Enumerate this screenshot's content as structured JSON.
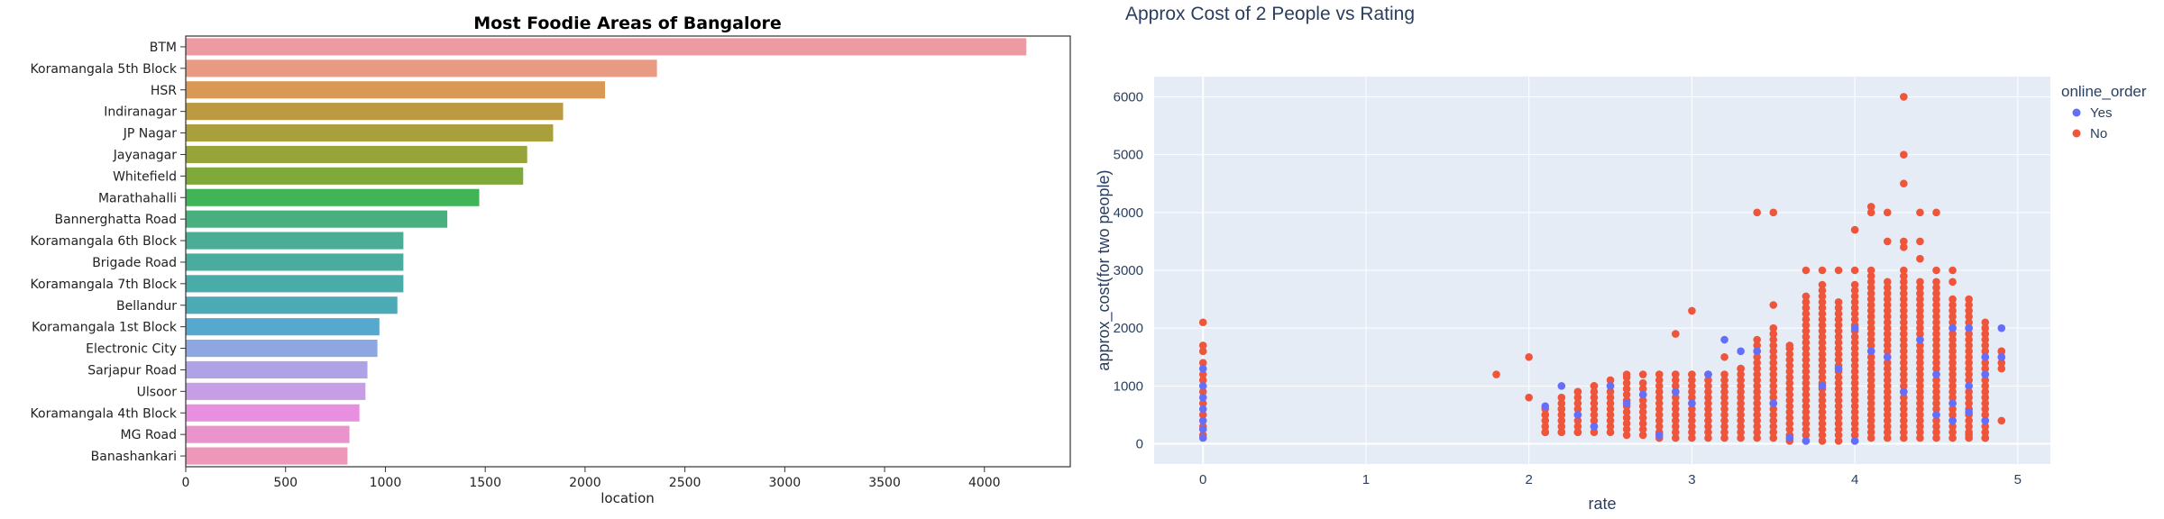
{
  "chart_data": [
    {
      "type": "bar",
      "orientation": "horizontal",
      "title": "Most Foodie Areas of Bangalore",
      "xlabel": "location",
      "ylabel": "",
      "xlim": [
        0,
        4430
      ],
      "xticks": [
        0,
        500,
        1000,
        1500,
        2000,
        2500,
        3000,
        3500,
        4000
      ],
      "categories": [
        "BTM",
        "Koramangala 5th Block",
        "HSR",
        "Indiranagar",
        "JP Nagar",
        "Jayanagar",
        "Whitefield",
        "Marathahalli",
        "Bannerghatta Road",
        "Koramangala 6th Block",
        "Brigade Road",
        "Koramangala 7th Block",
        "Bellandur",
        "Koramangala 1st Block",
        "Electronic City",
        "Sarjapur Road",
        "Ulsoor",
        "Koramangala 4th Block",
        "MG Road",
        "Banashankari"
      ],
      "values": [
        4210,
        2360,
        2100,
        1890,
        1840,
        1710,
        1690,
        1470,
        1310,
        1090,
        1090,
        1090,
        1060,
        970,
        960,
        910,
        900,
        870,
        820,
        810
      ],
      "colors": [
        "#ee9aa2",
        "#e89a82",
        "#d99854",
        "#bb9a42",
        "#a8a03c",
        "#96a43a",
        "#7fa938",
        "#41b458",
        "#48b07e",
        "#49ae93",
        "#4aac9f",
        "#4aaca9",
        "#4caab6",
        "#56a8cf",
        "#8ea6e2",
        "#b0a2e6",
        "#c79de6",
        "#e890e0",
        "#ea94cc",
        "#ed98b8"
      ],
      "grid": false,
      "legend": "none"
    },
    {
      "type": "scatter",
      "title": "Approx Cost of 2 People vs Rating",
      "xlabel": "rate",
      "ylabel": "approx_cost(for two people)",
      "xlim": [
        -0.3,
        5.2
      ],
      "ylim": [
        -350,
        6350
      ],
      "xticks": [
        0,
        1,
        2,
        3,
        4,
        5
      ],
      "yticks": [
        0,
        1000,
        2000,
        3000,
        4000,
        5000,
        6000
      ],
      "grid": true,
      "legend_position": "top-right",
      "legend_title": "online_order",
      "colors": {
        "Yes": "#636efa",
        "No": "#ef553b",
        "plot_bg": "#e5ecf6"
      },
      "series": [
        {
          "name": "Yes",
          "points": [
            [
              0,
              100
            ],
            [
              0,
              250
            ],
            [
              0,
              400
            ],
            [
              0,
              600
            ],
            [
              0,
              800
            ],
            [
              0,
              1000
            ],
            [
              0,
              1300
            ],
            [
              2.1,
              650
            ],
            [
              2.2,
              1000
            ],
            [
              2.3,
              500
            ],
            [
              2.4,
              300
            ],
            [
              2.5,
              1000
            ],
            [
              2.6,
              700
            ],
            [
              2.7,
              850
            ],
            [
              2.8,
              150
            ],
            [
              2.9,
              900
            ],
            [
              3.0,
              700
            ],
            [
              3.1,
              1200
            ],
            [
              3.2,
              1800
            ],
            [
              3.3,
              1600
            ],
            [
              3.4,
              1600
            ],
            [
              3.5,
              700
            ],
            [
              3.6,
              100
            ],
            [
              3.7,
              50
            ],
            [
              3.8,
              1000
            ],
            [
              3.9,
              1300
            ],
            [
              4.0,
              50
            ],
            [
              4.0,
              2000
            ],
            [
              4.1,
              1600
            ],
            [
              4.2,
              1500
            ],
            [
              4.3,
              900
            ],
            [
              4.4,
              1800
            ],
            [
              4.5,
              1200
            ],
            [
              4.5,
              500
            ],
            [
              4.6,
              700
            ],
            [
              4.6,
              2000
            ],
            [
              4.7,
              550
            ],
            [
              4.7,
              2000
            ],
            [
              4.8,
              1200
            ],
            [
              4.8,
              1500
            ],
            [
              4.8,
              400
            ],
            [
              4.9,
              2000
            ],
            [
              4.9,
              1500
            ],
            [
              4.6,
              400
            ],
            [
              4.7,
              1000
            ]
          ]
        },
        {
          "name": "No",
          "points": [
            [
              0,
              150
            ],
            [
              0,
              300
            ],
            [
              0,
              500
            ],
            [
              0,
              700
            ],
            [
              0,
              900
            ],
            [
              0,
              1100
            ],
            [
              0,
              1200
            ],
            [
              0,
              1400
            ],
            [
              0,
              1600
            ],
            [
              0,
              1700
            ],
            [
              0,
              2100
            ],
            [
              1.8,
              1200
            ],
            [
              2.0,
              1500
            ],
            [
              2.0,
              800
            ],
            [
              2.1,
              200
            ],
            [
              2.1,
              500
            ],
            [
              2.2,
              200
            ],
            [
              2.2,
              600
            ],
            [
              2.3,
              200
            ],
            [
              2.3,
              900
            ],
            [
              2.4,
              1000
            ],
            [
              2.5,
              1100
            ],
            [
              2.6,
              1200
            ],
            [
              2.7,
              1200
            ],
            [
              2.8,
              1200
            ],
            [
              2.9,
              1900
            ],
            [
              2.9,
              1200
            ],
            [
              3.0,
              2300
            ],
            [
              3.0,
              1200
            ],
            [
              3.1,
              1200
            ],
            [
              3.2,
              1500
            ],
            [
              3.3,
              1300
            ],
            [
              3.4,
              4000
            ],
            [
              3.4,
              1800
            ],
            [
              3.5,
              4000
            ],
            [
              3.5,
              2400
            ],
            [
              3.6,
              1700
            ],
            [
              3.7,
              3000
            ],
            [
              3.8,
              3000
            ],
            [
              3.9,
              3000
            ],
            [
              4.0,
              3700
            ],
            [
              4.0,
              3000
            ],
            [
              4.1,
              4100
            ],
            [
              4.1,
              4000
            ],
            [
              4.2,
              4000
            ],
            [
              4.2,
              3500
            ],
            [
              4.3,
              6000
            ],
            [
              4.3,
              5000
            ],
            [
              4.3,
              4500
            ],
            [
              4.3,
              3500
            ],
            [
              4.3,
              3400
            ],
            [
              4.4,
              3500
            ],
            [
              4.4,
              3200
            ],
            [
              4.4,
              4000
            ],
            [
              4.5,
              4000
            ],
            [
              4.5,
              3000
            ],
            [
              4.6,
              3000
            ],
            [
              4.6,
              2800
            ],
            [
              4.7,
              2500
            ],
            [
              4.8,
              2100
            ],
            [
              4.9,
              400
            ],
            [
              4.9,
              1600
            ],
            [
              4.8,
              100
            ],
            [
              4.7,
              150
            ]
          ],
          "columns": [
            {
              "x": 2.1,
              "min": 200,
              "max": 650
            },
            {
              "x": 2.2,
              "min": 200,
              "max": 800
            },
            {
              "x": 2.3,
              "min": 200,
              "max": 900
            },
            {
              "x": 2.4,
              "min": 200,
              "max": 1000
            },
            {
              "x": 2.5,
              "min": 200,
              "max": 1050
            },
            {
              "x": 2.6,
              "min": 150,
              "max": 1200
            },
            {
              "x": 2.7,
              "min": 150,
              "max": 1100
            },
            {
              "x": 2.8,
              "min": 100,
              "max": 1200
            },
            {
              "x": 2.9,
              "min": 100,
              "max": 1200
            },
            {
              "x": 3.0,
              "min": 100,
              "max": 1200
            },
            {
              "x": 3.1,
              "min": 100,
              "max": 1200
            },
            {
              "x": 3.2,
              "min": 100,
              "max": 1200
            },
            {
              "x": 3.3,
              "min": 100,
              "max": 1300
            },
            {
              "x": 3.4,
              "min": 100,
              "max": 1700
            },
            {
              "x": 3.5,
              "min": 100,
              "max": 2000
            },
            {
              "x": 3.6,
              "min": 50,
              "max": 1700
            },
            {
              "x": 3.7,
              "min": 50,
              "max": 2600
            },
            {
              "x": 3.8,
              "min": 50,
              "max": 2800
            },
            {
              "x": 3.9,
              "min": 50,
              "max": 2500
            },
            {
              "x": 4.0,
              "min": 50,
              "max": 2800
            },
            {
              "x": 4.1,
              "min": 100,
              "max": 3000
            },
            {
              "x": 4.2,
              "min": 100,
              "max": 2800
            },
            {
              "x": 4.3,
              "min": 100,
              "max": 3000
            },
            {
              "x": 4.4,
              "min": 100,
              "max": 2800
            },
            {
              "x": 4.5,
              "min": 100,
              "max": 2800
            },
            {
              "x": 4.6,
              "min": 100,
              "max": 2500
            },
            {
              "x": 4.7,
              "min": 100,
              "max": 2400
            },
            {
              "x": 4.8,
              "min": 100,
              "max": 2000
            },
            {
              "x": 4.9,
              "min": 1300,
              "max": 1600
            }
          ],
          "column_step": 100
        }
      ]
    }
  ]
}
